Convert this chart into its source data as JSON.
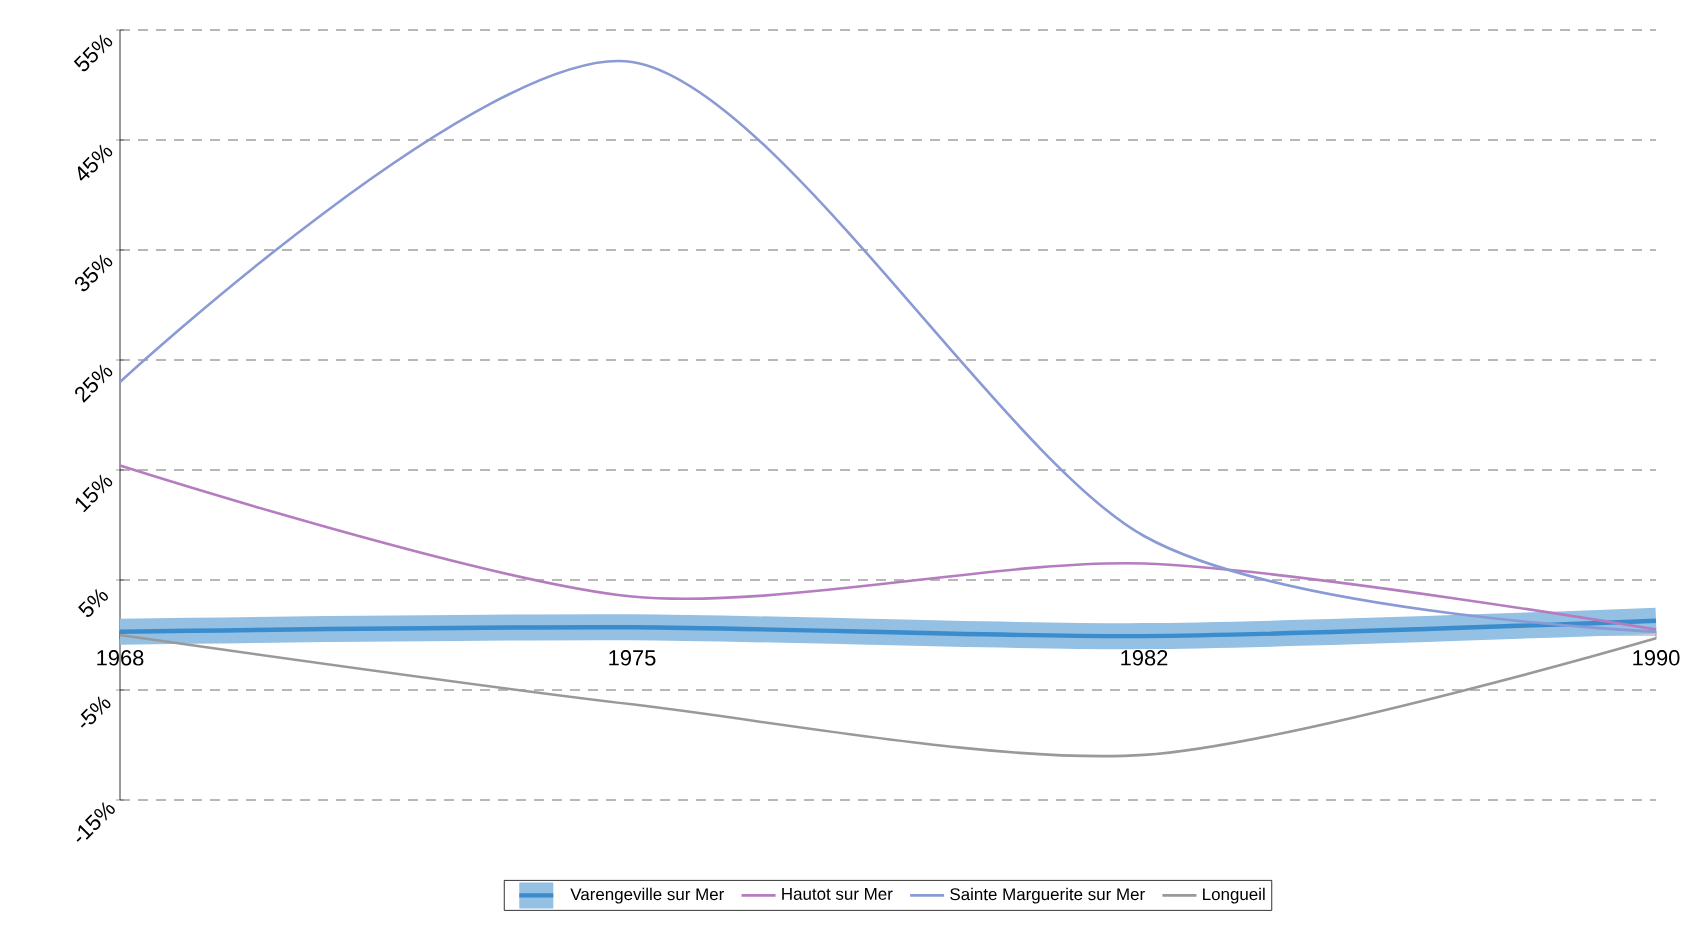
{
  "chart_data": {
    "type": "line",
    "categories": [
      "1968",
      "1975",
      "1982",
      "1990"
    ],
    "series": [
      {
        "name": "Varengeville sur Mer",
        "color": "#3a8ccc",
        "values": [
          0.3,
          0.7,
          -0.1,
          1.3
        ]
      },
      {
        "name": "Hautot sur Mer",
        "color": "#b57cc0",
        "values": [
          15.4,
          3.5,
          6.5,
          0.5
        ]
      },
      {
        "name": "Sainte Marguerite sur Mer",
        "color": "#8a9ad4",
        "values": [
          23.0,
          52.1,
          9.0,
          0.3
        ]
      },
      {
        "name": "Longueil",
        "color": "#999999",
        "values": [
          0.0,
          -6.3,
          -10.9,
          -0.3
        ]
      }
    ],
    "ylim": [
      -15,
      55
    ],
    "yticks": [
      {
        "value": 55,
        "label": "55%"
      },
      {
        "value": 45,
        "label": "45%"
      },
      {
        "value": 35,
        "label": "35%"
      },
      {
        "value": 25,
        "label": "25%"
      },
      {
        "value": 15,
        "label": "15%"
      },
      {
        "value": 5,
        "label": "5%"
      },
      {
        "value": -5,
        "label": "-5%"
      },
      {
        "value": -15,
        "label": "-15%"
      }
    ],
    "grid": "y",
    "legend": "bottom"
  }
}
